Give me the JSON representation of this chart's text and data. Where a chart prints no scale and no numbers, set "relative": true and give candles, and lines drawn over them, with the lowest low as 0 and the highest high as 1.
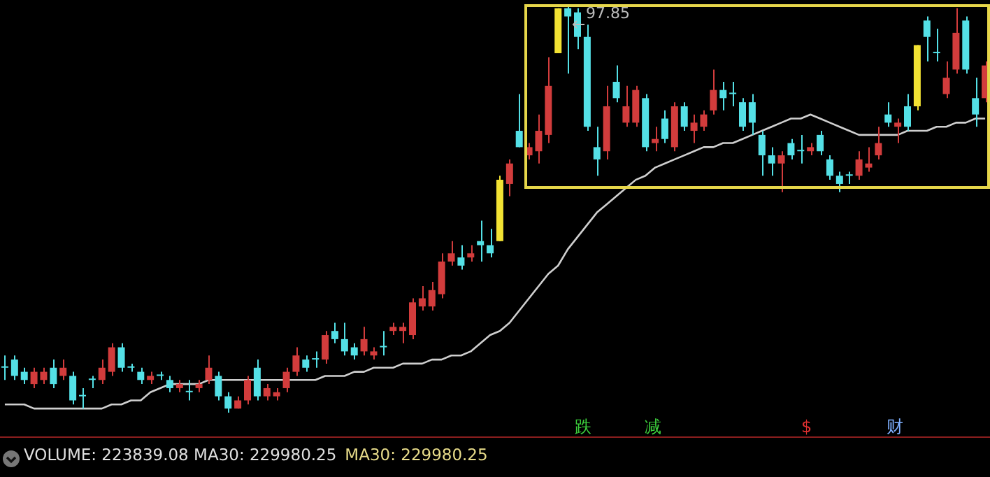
{
  "chart_data": {
    "type": "candlestick",
    "relative": true,
    "legend": false,
    "marker": "none",
    "categories": [
      null,
      null,
      null,
      null,
      null,
      null,
      null,
      null,
      null,
      null,
      null,
      null,
      null,
      null,
      null,
      null,
      null,
      null,
      null,
      null,
      null,
      null,
      null,
      null,
      null,
      null,
      null,
      null,
      null,
      null,
      null,
      null,
      null,
      null,
      null,
      null,
      null,
      null,
      null,
      null,
      null,
      null,
      null,
      null,
      null,
      null,
      null,
      null,
      null,
      null,
      null,
      null,
      null,
      null,
      null,
      null,
      null,
      null,
      null,
      null,
      null,
      null,
      null,
      null,
      null,
      null,
      null,
      null,
      null,
      null,
      null,
      null,
      null,
      null,
      null,
      null,
      null,
      null,
      null,
      null,
      null,
      null,
      null,
      null,
      null,
      null,
      null,
      null,
      null,
      null,
      null,
      null,
      null,
      null,
      null,
      null,
      null,
      null,
      null,
      null,
      null,
      null
    ],
    "ohlc": [
      [
        0.11,
        0.14,
        0.08,
        0.11
      ],
      [
        0.13,
        0.14,
        0.08,
        0.09
      ],
      [
        0.1,
        0.11,
        0.07,
        0.08
      ],
      [
        0.07,
        0.11,
        0.06,
        0.1
      ],
      [
        0.08,
        0.11,
        0.07,
        0.1
      ],
      [
        0.11,
        0.13,
        0.06,
        0.07
      ],
      [
        0.09,
        0.13,
        0.08,
        0.11
      ],
      [
        0.09,
        0.1,
        0.02,
        0.03
      ],
      [
        0.04,
        0.06,
        0.01,
        0.04
      ],
      [
        0.08,
        0.09,
        0.06,
        0.08
      ],
      [
        0.08,
        0.13,
        0.07,
        0.11
      ],
      [
        0.1,
        0.17,
        0.09,
        0.16
      ],
      [
        0.16,
        0.17,
        0.1,
        0.11
      ],
      [
        0.11,
        0.12,
        0.1,
        0.11
      ],
      [
        0.1,
        0.11,
        0.07,
        0.08
      ],
      [
        0.08,
        0.1,
        0.07,
        0.09
      ],
      [
        0.09,
        0.1,
        0.08,
        0.09
      ],
      [
        0.08,
        0.09,
        0.05,
        0.06
      ],
      [
        0.06,
        0.08,
        0.05,
        0.07
      ],
      [
        0.05,
        0.08,
        0.03,
        0.05
      ],
      [
        0.06,
        0.08,
        0.05,
        0.07
      ],
      [
        0.08,
        0.14,
        0.07,
        0.11
      ],
      [
        0.09,
        0.1,
        0.03,
        0.04
      ],
      [
        0.04,
        0.05,
        0.0,
        0.01
      ],
      [
        0.01,
        0.04,
        0.01,
        0.03
      ],
      [
        0.03,
        0.09,
        0.02,
        0.08
      ],
      [
        0.11,
        0.13,
        0.03,
        0.04
      ],
      [
        0.04,
        0.07,
        0.03,
        0.06
      ],
      [
        0.04,
        0.06,
        0.03,
        0.05
      ],
      [
        0.06,
        0.11,
        0.05,
        0.1
      ],
      [
        0.1,
        0.16,
        0.09,
        0.14
      ],
      [
        0.13,
        0.14,
        0.1,
        0.11
      ],
      [
        0.13,
        0.15,
        0.11,
        0.13
      ],
      [
        0.13,
        0.2,
        0.12,
        0.19
      ],
      [
        0.2,
        0.22,
        0.17,
        0.18
      ],
      [
        0.18,
        0.22,
        0.14,
        0.15
      ],
      [
        0.16,
        0.17,
        0.13,
        0.14
      ],
      [
        0.15,
        0.21,
        0.14,
        0.18
      ],
      [
        0.14,
        0.16,
        0.13,
        0.15
      ],
      [
        0.16,
        0.2,
        0.14,
        0.16
      ],
      [
        0.2,
        0.22,
        0.19,
        0.21
      ],
      [
        0.2,
        0.22,
        0.17,
        0.21
      ],
      [
        0.19,
        0.28,
        0.18,
        0.27
      ],
      [
        0.26,
        0.31,
        0.25,
        0.28
      ],
      [
        0.26,
        0.32,
        0.25,
        0.3
      ],
      [
        0.29,
        0.39,
        0.28,
        0.37
      ],
      [
        0.37,
        0.42,
        0.36,
        0.39
      ],
      [
        0.38,
        0.41,
        0.35,
        0.36
      ],
      [
        0.38,
        0.41,
        0.37,
        0.39
      ],
      [
        0.42,
        0.47,
        0.37,
        0.41
      ],
      [
        0.41,
        0.45,
        0.38,
        0.39
      ],
      [
        0.42,
        0.58,
        0.42,
        0.57
      ],
      [
        0.56,
        0.62,
        0.53,
        0.61
      ],
      [
        0.69,
        0.78,
        0.65,
        0.65
      ],
      [
        0.63,
        0.66,
        0.62,
        0.65
      ],
      [
        0.64,
        0.73,
        0.61,
        0.69
      ],
      [
        0.68,
        0.87,
        0.66,
        0.8
      ],
      [
        0.88,
        0.99,
        0.88,
        0.99
      ],
      [
        0.99,
        1.0,
        0.83,
        0.97
      ],
      [
        0.98,
        0.99,
        0.89,
        0.92
      ],
      [
        0.92,
        0.95,
        0.69,
        0.7
      ],
      [
        0.65,
        0.7,
        0.58,
        0.62
      ],
      [
        0.64,
        0.8,
        0.62,
        0.75
      ],
      [
        0.81,
        0.85,
        0.76,
        0.77
      ],
      [
        0.71,
        0.8,
        0.7,
        0.75
      ],
      [
        0.71,
        0.8,
        0.7,
        0.79
      ],
      [
        0.77,
        0.78,
        0.64,
        0.65
      ],
      [
        0.66,
        0.7,
        0.64,
        0.67
      ],
      [
        0.72,
        0.74,
        0.66,
        0.67
      ],
      [
        0.65,
        0.76,
        0.64,
        0.75
      ],
      [
        0.75,
        0.76,
        0.69,
        0.7
      ],
      [
        0.69,
        0.73,
        0.66,
        0.71
      ],
      [
        0.7,
        0.74,
        0.69,
        0.73
      ],
      [
        0.74,
        0.84,
        0.73,
        0.79
      ],
      [
        0.79,
        0.81,
        0.74,
        0.77
      ],
      [
        0.78,
        0.81,
        0.75,
        0.78
      ],
      [
        0.76,
        0.77,
        0.69,
        0.7
      ],
      [
        0.76,
        0.78,
        0.68,
        0.71
      ],
      [
        0.68,
        0.69,
        0.58,
        0.63
      ],
      [
        0.63,
        0.65,
        0.58,
        0.61
      ],
      [
        0.61,
        0.64,
        0.54,
        0.63
      ],
      [
        0.66,
        0.67,
        0.62,
        0.63
      ],
      [
        0.64,
        0.68,
        0.61,
        0.64
      ],
      [
        0.64,
        0.66,
        0.63,
        0.65
      ],
      [
        0.68,
        0.69,
        0.63,
        0.64
      ],
      [
        0.62,
        0.63,
        0.57,
        0.58
      ],
      [
        0.58,
        0.59,
        0.54,
        0.56
      ],
      [
        0.58,
        0.59,
        0.56,
        0.58
      ],
      [
        0.58,
        0.64,
        0.57,
        0.62
      ],
      [
        0.6,
        0.65,
        0.59,
        0.61
      ],
      [
        0.63,
        0.7,
        0.62,
        0.66
      ],
      [
        0.73,
        0.76,
        0.7,
        0.71
      ],
      [
        0.7,
        0.72,
        0.66,
        0.71
      ],
      [
        0.75,
        0.78,
        0.69,
        0.7
      ],
      [
        0.75,
        0.9,
        0.74,
        0.9
      ],
      [
        0.96,
        0.97,
        0.86,
        0.92
      ],
      [
        0.88,
        0.94,
        0.86,
        0.88
      ],
      [
        0.78,
        0.86,
        0.77,
        0.82
      ],
      [
        0.84,
        0.99,
        0.83,
        0.93
      ],
      [
        0.96,
        0.97,
        0.83,
        0.84
      ],
      [
        0.77,
        0.82,
        0.7,
        0.73
      ],
      [
        0.77,
        0.86,
        0.76,
        0.85
      ]
    ],
    "colors": [
      "#54e0e6",
      "#54e0e6",
      "#54e0e6",
      "#d23c3c",
      "#d23c3c",
      "#54e0e6",
      "#d23c3c",
      "#54e0e6",
      "#54e0e6",
      "#54e0e6",
      "#d23c3c",
      "#d23c3c",
      "#54e0e6",
      "#54e0e6",
      "#54e0e6",
      "#d23c3c",
      "#54e0e6",
      "#54e0e6",
      "#d23c3c",
      "#54e0e6",
      "#d23c3c",
      "#d23c3c",
      "#54e0e6",
      "#54e0e6",
      "#d23c3c",
      "#d23c3c",
      "#54e0e6",
      "#d23c3c",
      "#d23c3c",
      "#d23c3c",
      "#d23c3c",
      "#54e0e6",
      "#54e0e6",
      "#d23c3c",
      "#54e0e6",
      "#54e0e6",
      "#54e0e6",
      "#d23c3c",
      "#d23c3c",
      "#54e0e6",
      "#d23c3c",
      "#d23c3c",
      "#d23c3c",
      "#d23c3c",
      "#d23c3c",
      "#d23c3c",
      "#d23c3c",
      "#54e0e6",
      "#d23c3c",
      "#54e0e6",
      "#54e0e6",
      "#f2e233",
      "#d23c3c",
      "#54e0e6",
      "#d23c3c",
      "#d23c3c",
      "#d23c3c",
      "#f2e233",
      "#54e0e6",
      "#54e0e6",
      "#54e0e6",
      "#54e0e6",
      "#d23c3c",
      "#54e0e6",
      "#d23c3c",
      "#d23c3c",
      "#54e0e6",
      "#d23c3c",
      "#54e0e6",
      "#d23c3c",
      "#54e0e6",
      "#d23c3c",
      "#d23c3c",
      "#d23c3c",
      "#54e0e6",
      "#54e0e6",
      "#54e0e6",
      "#54e0e6",
      "#54e0e6",
      "#54e0e6",
      "#d23c3c",
      "#54e0e6",
      "#54e0e6",
      "#d23c3c",
      "#54e0e6",
      "#54e0e6",
      "#54e0e6",
      "#54e0e6",
      "#d23c3c",
      "#d23c3c",
      "#d23c3c",
      "#54e0e6",
      "#d23c3c",
      "#54e0e6",
      "#f2e233",
      "#54e0e6",
      "#54e0e6",
      "#d23c3c",
      "#d23c3c",
      "#54e0e6",
      "#54e0e6",
      "#d23c3c"
    ],
    "series": [
      {
        "type": "line",
        "color": "#cfcfcf",
        "values": [
          0.02,
          0.02,
          0.02,
          0.01,
          0.01,
          0.01,
          0.01,
          0.01,
          0.01,
          0.01,
          0.01,
          0.02,
          0.02,
          0.03,
          0.03,
          0.05,
          0.06,
          0.07,
          0.07,
          0.07,
          0.07,
          0.08,
          0.08,
          0.08,
          0.08,
          0.08,
          0.08,
          0.08,
          0.08,
          0.08,
          0.08,
          0.08,
          0.08,
          0.09,
          0.09,
          0.09,
          0.1,
          0.1,
          0.11,
          0.11,
          0.11,
          0.12,
          0.12,
          0.12,
          0.13,
          0.13,
          0.14,
          0.14,
          0.15,
          0.17,
          0.19,
          0.2,
          0.22,
          0.25,
          0.28,
          0.31,
          0.34,
          0.36,
          0.4,
          0.43,
          0.46,
          0.49,
          0.51,
          0.53,
          0.55,
          0.57,
          0.58,
          0.6,
          0.61,
          0.62,
          0.63,
          0.64,
          0.65,
          0.65,
          0.66,
          0.66,
          0.67,
          0.68,
          0.69,
          0.7,
          0.71,
          0.72,
          0.72,
          0.73,
          0.72,
          0.71,
          0.7,
          0.69,
          0.68,
          0.68,
          0.68,
          0.68,
          0.68,
          0.69,
          0.69,
          0.69,
          0.7,
          0.7,
          0.71,
          0.71,
          0.72,
          0.72
        ]
      }
    ],
    "annotations": [
      "97.85",
      "跌",
      "减",
      "$",
      "财",
      "VOLUME: 223839.08 MA30: 229980.25",
      "MA30: 229980.25"
    ]
  }
}
